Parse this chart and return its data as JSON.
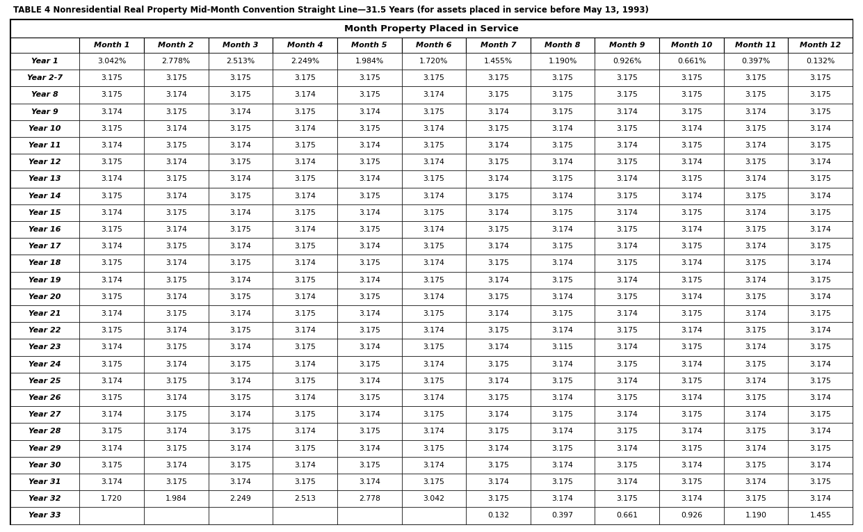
{
  "title": "TABLE 4 Nonresidential Real Property Mid-Month Convention Straight Line—31.5 Years (for assets placed in service before May 13, 1993)",
  "subtitle": "Month Property Placed in Service",
  "columns": [
    "",
    "Month 1",
    "Month 2",
    "Month 3",
    "Month 4",
    "Month 5",
    "Month 6",
    "Month 7",
    "Month 8",
    "Month 9",
    "Month 10",
    "Month 11",
    "Month 12"
  ],
  "rows": [
    [
      "Year 1",
      "3.042%",
      "2.778%",
      "2.513%",
      "2.249%",
      "1.984%",
      "1.720%",
      "1.455%",
      "1.190%",
      "0.926%",
      "0.661%",
      "0.397%",
      "0.132%"
    ],
    [
      "Year 2-7",
      "3.175",
      "3.175",
      "3.175",
      "3.175",
      "3.175",
      "3.175",
      "3.175",
      "3.175",
      "3.175",
      "3.175",
      "3.175",
      "3.175"
    ],
    [
      "Year 8",
      "3.175",
      "3.174",
      "3.175",
      "3.174",
      "3.175",
      "3.174",
      "3.175",
      "3.175",
      "3.175",
      "3.175",
      "3.175",
      "3.175"
    ],
    [
      "Year 9",
      "3.174",
      "3.175",
      "3.174",
      "3.175",
      "3.174",
      "3.175",
      "3.174",
      "3.175",
      "3.174",
      "3.175",
      "3.174",
      "3.175"
    ],
    [
      "Year 10",
      "3.175",
      "3.174",
      "3.175",
      "3.174",
      "3.175",
      "3.174",
      "3.175",
      "3.174",
      "3.175",
      "3.174",
      "3.175",
      "3.174"
    ],
    [
      "Year 11",
      "3.174",
      "3.175",
      "3.174",
      "3.175",
      "3.174",
      "3.175",
      "3.174",
      "3.175",
      "3.174",
      "3.175",
      "3.174",
      "3.175"
    ],
    [
      "Year 12",
      "3.175",
      "3.174",
      "3.175",
      "3.174",
      "3.175",
      "3.174",
      "3.175",
      "3.174",
      "3.175",
      "3.174",
      "3.175",
      "3.174"
    ],
    [
      "Year 13",
      "3.174",
      "3.175",
      "3.174",
      "3.175",
      "3.174",
      "3.175",
      "3.174",
      "3.175",
      "3.174",
      "3.175",
      "3.174",
      "3.175"
    ],
    [
      "Year 14",
      "3.175",
      "3.174",
      "3.175",
      "3.174",
      "3.175",
      "3.174",
      "3.175",
      "3.174",
      "3.175",
      "3.174",
      "3.175",
      "3.174"
    ],
    [
      "Year 15",
      "3.174",
      "3.175",
      "3.174",
      "3.175",
      "3.174",
      "3.175",
      "3.174",
      "3.175",
      "3.174",
      "3.175",
      "3.174",
      "3.175"
    ],
    [
      "Year 16",
      "3.175",
      "3.174",
      "3.175",
      "3.174",
      "3.175",
      "3.174",
      "3.175",
      "3.174",
      "3.175",
      "3.174",
      "3.175",
      "3.174"
    ],
    [
      "Year 17",
      "3.174",
      "3.175",
      "3.174",
      "3.175",
      "3.174",
      "3.175",
      "3.174",
      "3.175",
      "3.174",
      "3.175",
      "3.174",
      "3.175"
    ],
    [
      "Year 18",
      "3.175",
      "3.174",
      "3.175",
      "3.174",
      "3.175",
      "3.174",
      "3.175",
      "3.174",
      "3.175",
      "3.174",
      "3.175",
      "3.174"
    ],
    [
      "Year 19",
      "3.174",
      "3.175",
      "3.174",
      "3.175",
      "3.174",
      "3.175",
      "3.174",
      "3.175",
      "3.174",
      "3.175",
      "3.174",
      "3.175"
    ],
    [
      "Year 20",
      "3.175",
      "3.174",
      "3.175",
      "3.174",
      "3.175",
      "3.174",
      "3.175",
      "3.174",
      "3.175",
      "3.174",
      "3.175",
      "3.174"
    ],
    [
      "Year 21",
      "3.174",
      "3.175",
      "3.174",
      "3.175",
      "3.174",
      "3.175",
      "3.174",
      "3.175",
      "3.174",
      "3.175",
      "3.174",
      "3.175"
    ],
    [
      "Year 22",
      "3.175",
      "3.174",
      "3.175",
      "3.174",
      "3.175",
      "3.174",
      "3.175",
      "3.174",
      "3.175",
      "3.174",
      "3.175",
      "3.174"
    ],
    [
      "Year 23",
      "3.174",
      "3.175",
      "3.174",
      "3.175",
      "3.174",
      "3.175",
      "3.174",
      "3.115",
      "3.174",
      "3.175",
      "3.174",
      "3.175"
    ],
    [
      "Year 24",
      "3.175",
      "3.174",
      "3.175",
      "3.174",
      "3.175",
      "3.174",
      "3.175",
      "3.174",
      "3.175",
      "3.174",
      "3.175",
      "3.174"
    ],
    [
      "Year 25",
      "3.174",
      "3.175",
      "3.174",
      "3.175",
      "3.174",
      "3.175",
      "3.174",
      "3.175",
      "3.174",
      "3.175",
      "3.174",
      "3.175"
    ],
    [
      "Year 26",
      "3.175",
      "3.174",
      "3.175",
      "3.174",
      "3.175",
      "3.174",
      "3.175",
      "3.174",
      "3.175",
      "3.174",
      "3.175",
      "3.174"
    ],
    [
      "Year 27",
      "3.174",
      "3.175",
      "3.174",
      "3.175",
      "3.174",
      "3.175",
      "3.174",
      "3.175",
      "3.174",
      "3.175",
      "3.174",
      "3.175"
    ],
    [
      "Year 28",
      "3.175",
      "3.174",
      "3.175",
      "3.174",
      "3.175",
      "3.174",
      "3.175",
      "3.174",
      "3.175",
      "3.174",
      "3.175",
      "3.174"
    ],
    [
      "Year 29",
      "3.174",
      "3.175",
      "3.174",
      "3.175",
      "3.174",
      "3.175",
      "3.174",
      "3.175",
      "3.174",
      "3.175",
      "3.174",
      "3.175"
    ],
    [
      "Year 30",
      "3.175",
      "3.174",
      "3.175",
      "3.174",
      "3.175",
      "3.174",
      "3.175",
      "3.174",
      "3.175",
      "3.174",
      "3.175",
      "3.174"
    ],
    [
      "Year 31",
      "3.174",
      "3.175",
      "3.174",
      "3.175",
      "3.174",
      "3.175",
      "3.174",
      "3.175",
      "3.174",
      "3.175",
      "3.174",
      "3.175"
    ],
    [
      "Year 32",
      "1.720",
      "1.984",
      "2.249",
      "2.513",
      "2.778",
      "3.042",
      "3.175",
      "3.174",
      "3.175",
      "3.174",
      "3.175",
      "3.174"
    ],
    [
      "Year 33",
      "",
      "",
      "",
      "",
      "",
      "",
      "0.132",
      "0.397",
      "0.661",
      "0.926",
      "1.190",
      "1.455"
    ]
  ],
  "bg_color": "#ffffff",
  "title_color": "#000000",
  "subtitle_color": "#000000",
  "col_header_color": "#000000",
  "row_label_color": "#000000",
  "data_color": "#000000",
  "border_color": "#000000",
  "title_fontsize": 8.5,
  "subtitle_fontsize": 9.5,
  "header_fontsize": 8.0,
  "data_fontsize": 7.8,
  "row_label_fontsize": 8.0
}
